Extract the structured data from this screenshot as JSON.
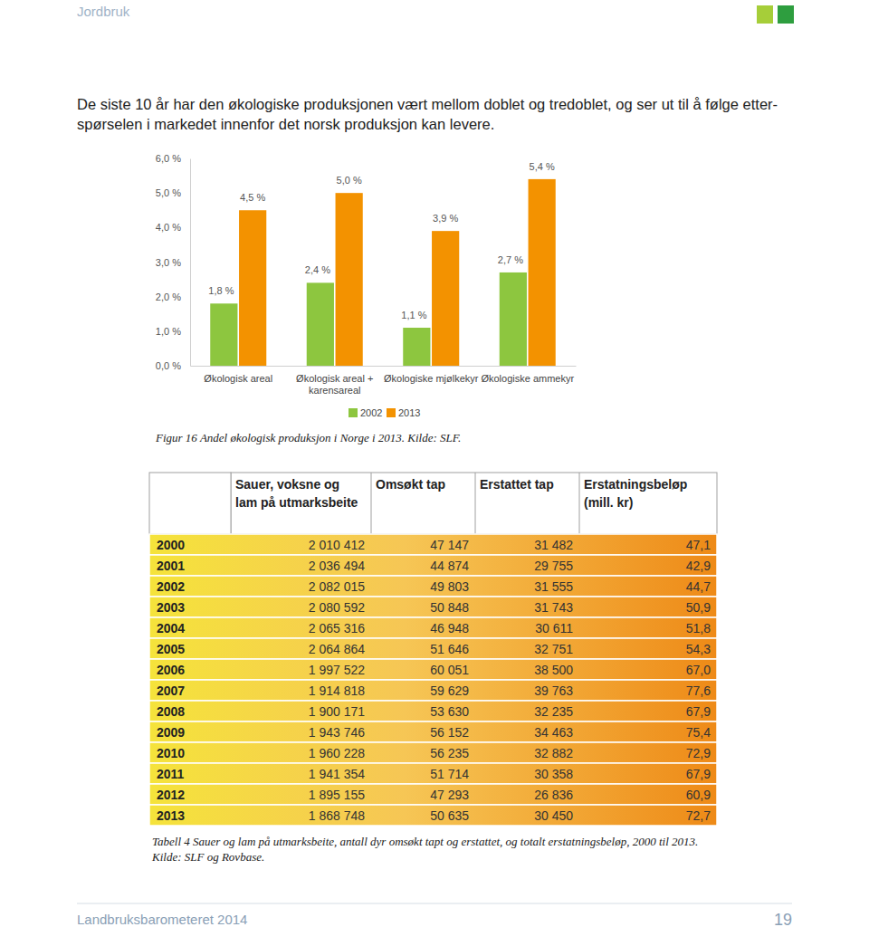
{
  "header": {
    "section": "Jordbruk"
  },
  "intro": {
    "lines": [
      "De siste 10 år har den økologiske produksjonen vært mellom doblet og tredoblet, og ser ut til å følge etter-",
      "spørselen i markedet innenfor det norsk produksjon kan levere."
    ]
  },
  "chart_data": {
    "type": "bar",
    "categories": [
      "Økologisk areal",
      "Økologisk areal + karensareal",
      "Økologiske mjølkekyr",
      "Økologiske ammekyr"
    ],
    "series": [
      {
        "name": "2002",
        "color": "#8dc63f",
        "values": [
          1.8,
          2.4,
          1.1,
          2.7
        ],
        "value_labels": [
          "1,8 %",
          "2,4 %",
          "1,1 %",
          "2,7 %"
        ]
      },
      {
        "name": "2013",
        "color": "#f39200",
        "values": [
          4.5,
          5.0,
          3.9,
          5.4
        ],
        "value_labels": [
          "4,5 %",
          "5,0 %",
          "3,9 %",
          "5,4 %"
        ]
      }
    ],
    "ylim": [
      0,
      6
    ],
    "yticks": [
      {
        "value": 0,
        "label": "0,0 %"
      },
      {
        "value": 1,
        "label": "1,0 %"
      },
      {
        "value": 2,
        "label": "2,0 %"
      },
      {
        "value": 3,
        "label": "3,0 %"
      },
      {
        "value": 4,
        "label": "4,0 %"
      },
      {
        "value": 5,
        "label": "5,0 %"
      },
      {
        "value": 6,
        "label": "6,0 %"
      }
    ],
    "grid": false,
    "data_labels": true,
    "legend": "bottom"
  },
  "figure_caption": "Figur 16 Andel økologisk produksjon i Norge i 2013. Kilde: SLF.",
  "table": {
    "columns": [
      "Sauer, voksne og lam på utmarksbeite",
      "Omsøkt tap",
      "Erstattet tap",
      "Erstatningsbeløp (mill. kr)"
    ],
    "rows": [
      [
        "2000",
        "2 010 412",
        "47 147",
        "31 482",
        "47,1"
      ],
      [
        "2001",
        "2 036 494",
        "44 874",
        "29 755",
        "42,9"
      ],
      [
        "2002",
        "2 082 015",
        "49 803",
        "31 555",
        "44,7"
      ],
      [
        "2003",
        "2 080 592",
        "50 848",
        "31 743",
        "50,9"
      ],
      [
        "2004",
        "2 065 316",
        "46 948",
        "30 611",
        "51,8"
      ],
      [
        "2005",
        "2 064 864",
        "51 646",
        "32 751",
        "54,3"
      ],
      [
        "2006",
        "1 997 522",
        "60 051",
        "38 500",
        "67,0"
      ],
      [
        "2007",
        "1 914 818",
        "59 629",
        "39 763",
        "77,6"
      ],
      [
        "2008",
        "1 900 171",
        "53 630",
        "32 235",
        "67,9"
      ],
      [
        "2009",
        "1 943 746",
        "56 152",
        "34 463",
        "75,4"
      ],
      [
        "2010",
        "1 960 228",
        "56 235",
        "32 882",
        "72,9"
      ],
      [
        "2011",
        "1 941 354",
        "51 714",
        "30 358",
        "67,9"
      ],
      [
        "2012",
        "1 895 155",
        "47 293",
        "26 836",
        "60,9"
      ],
      [
        "2013",
        "1 868 748",
        "50 635",
        "30 450",
        "72,7"
      ]
    ]
  },
  "table_caption": {
    "lines": [
      "Tabell 4 Sauer og lam på utmarksbeite, antall dyr omsøkt tapt og erstattet, og totalt erstatningsbeløp, 2000 til 2013.",
      "Kilde: SLF og Rovbase."
    ]
  },
  "footer": {
    "publication": "Landbruksbarometeret 2014",
    "page": "19"
  }
}
